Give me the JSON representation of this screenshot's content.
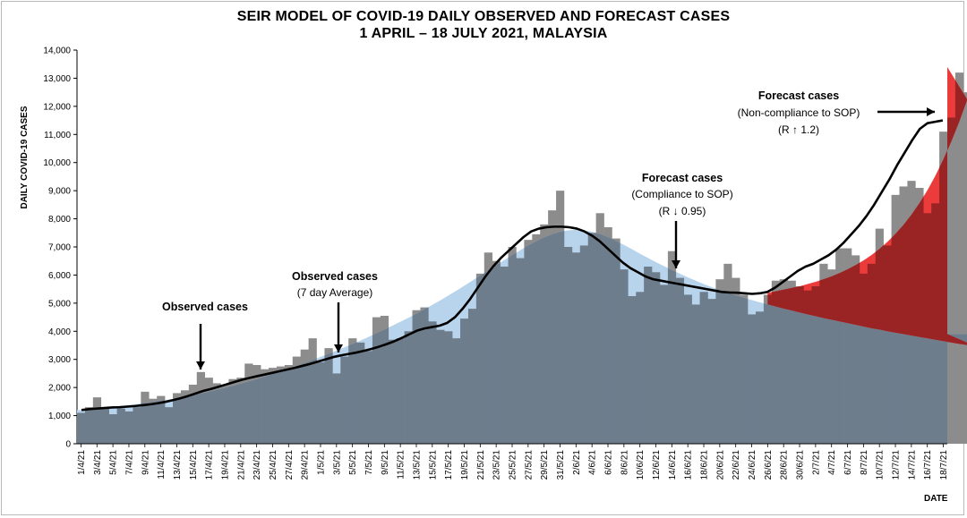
{
  "chart_data": {
    "type": "area",
    "title": "SEIR MODEL OF COVID-19 DAILY OBSERVED AND FORECAST CASES",
    "subtitle": "1 APRIL – 18 JULY 2021, MALAYSIA",
    "ylabel": "DAILY COVID-19 CASES",
    "xlabel": "DATE",
    "ylim": [
      0,
      14000
    ],
    "yticks": [
      0,
      1000,
      2000,
      3000,
      4000,
      5000,
      6000,
      7000,
      8000,
      9000,
      10000,
      11000,
      12000,
      13000,
      14000
    ],
    "ytick_labels": [
      "0",
      "1,000",
      "2,000",
      "3,000",
      "4,000",
      "5,000",
      "6,000",
      "7,000",
      "8,000",
      "9,000",
      "10,000",
      "11,000",
      "12,000",
      "13,000",
      "14,000"
    ],
    "x_tick_labels": [
      "1/4/21",
      "3/4/21",
      "5/4/21",
      "7/4/21",
      "9/4/21",
      "11/4/21",
      "13/4/21",
      "15/4/21",
      "17/4/21",
      "19/4/21",
      "21/4/21",
      "23/4/21",
      "25/4/21",
      "27/4/21",
      "29/4/21",
      "1/5/21",
      "3/5/21",
      "5/5/21",
      "7/5/21",
      "9/5/21",
      "11/5/21",
      "13/5/21",
      "15/5/21",
      "17/5/21",
      "19/5/21",
      "21/5/21",
      "23/5/21",
      "25/5/21",
      "27/5/21",
      "29/5/21",
      "31/5/21",
      "2/6/21",
      "4/6/21",
      "6/6/21",
      "8/6/21",
      "10/6/21",
      "12/6/21",
      "14/6/21",
      "16/6/21",
      "18/6/21",
      "20/6/21",
      "22/6/21",
      "24/6/21",
      "26/6/21",
      "28/6/21",
      "30/6/21",
      "2/7/21",
      "4/7/21",
      "6/7/21",
      "8/7/21",
      "10/7/21",
      "12/7/21",
      "14/7/21",
      "16/7/21",
      "18/7/21"
    ],
    "observed_start": "1/4/21",
    "observed_end": "17/7/21",
    "model_start": "1/4/21",
    "model_end": "18/7/21",
    "forecast_start": "26/6/21",
    "series": [
      {
        "name": "Observed cases",
        "values": [
          1100,
          1300,
          1650,
          1300,
          1050,
          1250,
          1150,
          1300,
          1850,
          1600,
          1700,
          1300,
          1800,
          1900,
          2100,
          2550,
          2350,
          2150,
          2100,
          2300,
          2350,
          2850,
          2800,
          2650,
          2700,
          2750,
          2800,
          3100,
          3350,
          3750,
          2900,
          3400,
          2500,
          3100,
          3750,
          3600,
          3300,
          4500,
          4550,
          3700,
          3750,
          4000,
          4750,
          4850,
          4350,
          4050,
          4000,
          3750,
          4450,
          4800,
          6050,
          6800,
          6500,
          6300,
          7000,
          6600,
          7250,
          7450,
          7800,
          8300,
          9000,
          7000,
          6800,
          7050,
          7500,
          8200,
          7700,
          7300,
          6200,
          5250,
          5400,
          6300,
          6100,
          5650,
          6850,
          5900,
          5300,
          4950,
          5400,
          5150,
          5850,
          6400,
          5900,
          5300,
          4600,
          4700,
          5300,
          5800,
          5850,
          5800,
          5600,
          5450,
          5600,
          6400,
          6200,
          6950,
          6950,
          6700,
          6050,
          6400,
          7650,
          7050,
          8850,
          9150,
          9350,
          9100,
          8200,
          8550,
          11100,
          11600,
          13200,
          12500,
          12550
        ]
      },
      {
        "name": "Observed cases (7 day Average)",
        "values": [
          1200,
          1230,
          1250,
          1270,
          1290,
          1300,
          1320,
          1340,
          1370,
          1400,
          1440,
          1490,
          1550,
          1620,
          1700,
          1790,
          1880,
          1950,
          2030,
          2110,
          2190,
          2270,
          2340,
          2400,
          2460,
          2520,
          2580,
          2640,
          2700,
          2770,
          2840,
          2920,
          3000,
          3080,
          3140,
          3190,
          3240,
          3300,
          3370,
          3450,
          3540,
          3640,
          3760,
          3890,
          4020,
          4100,
          4150,
          4200,
          4300,
          4500,
          4800,
          5150,
          5550,
          5950,
          6300,
          6600,
          6850,
          7100,
          7350,
          7550,
          7650,
          7700,
          7720,
          7720,
          7700,
          7650,
          7550,
          7400,
          7200,
          6950,
          6700,
          6450,
          6250,
          6100,
          5950,
          5850,
          5800,
          5750,
          5700,
          5650,
          5600,
          5550,
          5500,
          5450,
          5400,
          5380,
          5370,
          5350,
          5330,
          5350,
          5400,
          5550,
          5750,
          5950,
          6150,
          6300,
          6400,
          6550,
          6700,
          6900,
          7150,
          7450,
          7750,
          8100,
          8500,
          8950,
          9400,
          9900,
          10350,
          10800,
          11200,
          11400,
          11450,
          11500
        ]
      },
      {
        "name": "Forecast cases (Compliance to SOP) R ↓ 0.95",
        "values": [
          1200,
          1230,
          1260,
          1290,
          1320,
          1350,
          1380,
          1410,
          1450,
          1490,
          1530,
          1570,
          1620,
          1670,
          1730,
          1790,
          1850,
          1920,
          1990,
          2060,
          2140,
          2220,
          2300,
          2390,
          2480,
          2570,
          2670,
          2770,
          2870,
          2980,
          3090,
          3200,
          3310,
          3430,
          3550,
          3670,
          3800,
          3930,
          4060,
          4200,
          4340,
          4480,
          4630,
          4780,
          4940,
          5100,
          5270,
          5440,
          5620,
          5800,
          5980,
          6170,
          6350,
          6530,
          6710,
          6880,
          7050,
          7200,
          7340,
          7450,
          7540,
          7590,
          7610,
          7590,
          7540,
          7460,
          7350,
          7220,
          7070,
          6920,
          6760,
          6610,
          6460,
          6320,
          6180,
          6050,
          5920,
          5800,
          5680,
          5570,
          5470,
          5370,
          5280,
          5190,
          5110,
          5030,
          4960,
          4880,
          4810,
          4740,
          4670,
          4600,
          4540,
          4470,
          4410,
          4350,
          4290,
          4230,
          4170,
          4110,
          4060,
          4000,
          3950,
          3900,
          3850,
          3800,
          3750,
          3700,
          3650,
          3600,
          3550,
          3510,
          3470,
          3900
        ]
      },
      {
        "name": "Forecast cases (Non-compliance to SOP) R ↑ 1.2",
        "start": "26/6/21",
        "values": [
          5370,
          5420,
          5480,
          5540,
          5600,
          5680,
          5760,
          5850,
          5950,
          6070,
          6200,
          6350,
          6520,
          6710,
          6930,
          7180,
          7460,
          7780,
          8140,
          8550,
          9010,
          9530,
          10110,
          10750,
          11460,
          12240,
          13400
        ]
      }
    ],
    "legend": "none",
    "annotations": [
      {
        "label": "Observed cases",
        "date": "16/4/21"
      },
      {
        "label": "Observed cases",
        "sublabel": "(7 day Average)",
        "date": "3/5/21"
      },
      {
        "label": "Forecast cases",
        "sublabel": "(Compliance to SOP)",
        "sublabel2": "(R ↓ 0.95)",
        "date": "15/6/21"
      },
      {
        "label": "Forecast cases",
        "sublabel": "(Non-compliance to SOP)",
        "sublabel2": "(R ↑ 1.2)",
        "date": "15/7/21"
      }
    ],
    "colors": {
      "observed": "#8c8c8c",
      "observed_avg": "#000000",
      "forecast_compliance": "#b8d4ec",
      "overlap": "#6e7d8c",
      "forecast_noncompliance": "#ec3b3b",
      "noncompliance_overlap": "#9a2424"
    },
    "grid": false
  }
}
